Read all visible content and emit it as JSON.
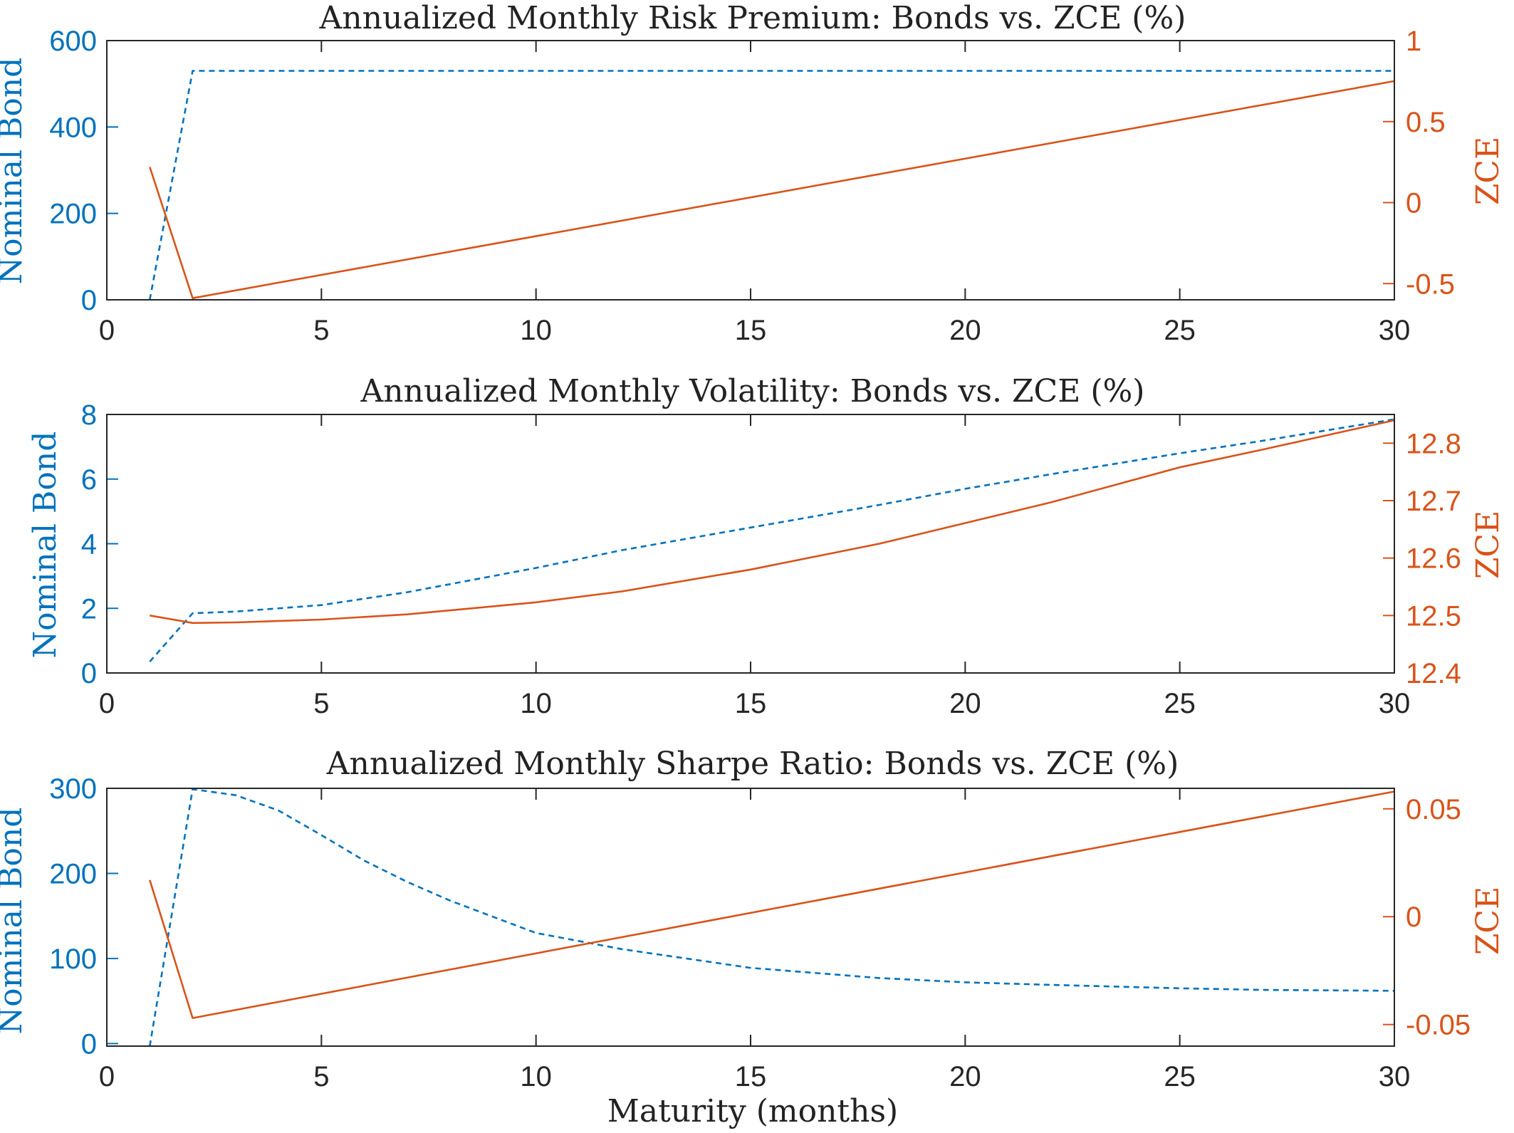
{
  "colors": {
    "left": "#0072BD",
    "right": "#D95319",
    "axis": "#262626"
  },
  "xlabel": "Maturity (months)",
  "chart_data": [
    {
      "type": "line",
      "title": "Annualized Monthly Risk Premium: Bonds vs. ZCE (%)",
      "xlabel": "",
      "xlim": [
        0,
        30
      ],
      "xticks": [
        0,
        5,
        10,
        15,
        20,
        25,
        30
      ],
      "left_axis": {
        "label": "Nominal Bond",
        "ylim": [
          0,
          600
        ],
        "ticks": [
          0,
          200,
          400,
          600
        ]
      },
      "right_axis": {
        "label": "ZCE",
        "ylim": [
          -0.6,
          1
        ],
        "ticks": [
          -0.5,
          0,
          0.5,
          1
        ]
      },
      "series": [
        {
          "axis": "left",
          "style": "dashed",
          "x": [
            1,
            2,
            30
          ],
          "y": [
            0,
            530,
            530
          ]
        },
        {
          "axis": "right",
          "style": "solid",
          "x": [
            1,
            2,
            30
          ],
          "y": [
            0.22,
            -0.59,
            0.75
          ]
        }
      ]
    },
    {
      "type": "line",
      "title": "Annualized Monthly Volatility: Bonds vs. ZCE (%)",
      "xlabel": "",
      "xlim": [
        0,
        30
      ],
      "xticks": [
        0,
        5,
        10,
        15,
        20,
        25,
        30
      ],
      "left_axis": {
        "label": "Nominal Bond",
        "ylim": [
          0,
          8
        ],
        "ticks": [
          0,
          2,
          4,
          6,
          8
        ]
      },
      "right_axis": {
        "label": "ZCE",
        "ylim": [
          12.4,
          12.85
        ],
        "ticks": [
          12.4,
          12.5,
          12.6,
          12.7,
          12.8
        ]
      },
      "series": [
        {
          "axis": "left",
          "style": "dashed",
          "x": [
            1,
            2,
            3,
            5,
            7,
            10,
            12,
            15,
            18,
            20,
            22,
            25,
            27,
            30
          ],
          "y": [
            0.35,
            1.85,
            1.9,
            2.1,
            2.5,
            3.25,
            3.8,
            4.5,
            5.2,
            5.7,
            6.15,
            6.8,
            7.2,
            7.85
          ]
        },
        {
          "axis": "right",
          "style": "solid",
          "x": [
            1,
            2,
            3,
            5,
            7,
            10,
            12,
            15,
            18,
            20,
            22,
            25,
            27,
            30
          ],
          "y": [
            12.5,
            12.487,
            12.488,
            12.493,
            12.502,
            12.523,
            12.542,
            12.58,
            12.625,
            12.661,
            12.697,
            12.758,
            12.79,
            12.84
          ]
        }
      ]
    },
    {
      "type": "line",
      "title": "Annualized Monthly Sharpe Ratio: Bonds vs. ZCE (%)",
      "xlabel": "Maturity (months)",
      "xlim": [
        0,
        30
      ],
      "xticks": [
        0,
        5,
        10,
        15,
        20,
        25,
        30
      ],
      "left_axis": {
        "label": "Nominal Bond",
        "ylim": [
          -3,
          300
        ],
        "ticks": [
          0,
          100,
          200,
          300
        ]
      },
      "right_axis": {
        "label": "ZCE",
        "ylim": [
          -0.06,
          0.0595
        ],
        "ticks": [
          -0.05,
          0,
          0.05
        ]
      },
      "series": [
        {
          "axis": "left",
          "style": "dashed",
          "x": [
            1,
            2,
            3,
            4,
            5,
            6,
            7,
            8,
            10,
            12,
            15,
            18,
            20,
            22,
            25,
            27,
            30
          ],
          "y": [
            -3,
            299,
            292,
            274,
            245,
            215,
            190,
            168,
            130,
            111,
            89,
            77,
            72,
            69,
            65,
            63,
            62
          ]
        },
        {
          "axis": "right",
          "style": "solid",
          "x": [
            1,
            2,
            30
          ],
          "y": [
            0.017,
            -0.047,
            0.058
          ]
        }
      ]
    }
  ]
}
